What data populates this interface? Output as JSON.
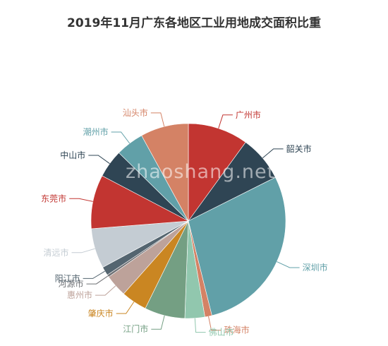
{
  "watermark": "zhaoshang.net",
  "colors": {
    "广州市": "#c23531",
    "韶关市": "#2f4554",
    "深圳市": "#61a0a8",
    "珠海市": "#d48265",
    "佛山市": "#91c7ae",
    "江门市": "#749f83",
    "肇庆市": "#ca8622",
    "惠州市": "#bda29a",
    "河源市": "#6e7074",
    "阳江市": "#546570",
    "清远市": "#c4ccd3",
    "东莞市": "#c23531",
    "中山市": "#2f4554",
    "潮州市": "#61a0a8",
    "汕头市": "#d48265"
  },
  "chart_data": {
    "type": "pie",
    "title": "2019年11月广东各地区工业用地成交面积比重",
    "categories": [
      "广州市",
      "韶关市",
      "深圳市",
      "珠海市",
      "佛山市",
      "江门市",
      "肇庆市",
      "惠州市",
      "河源市",
      "阳江市",
      "清远市",
      "东莞市",
      "中山市",
      "潮州市",
      "汕头市"
    ],
    "values": [
      10.3,
      7.8,
      29.3,
      1.2,
      3.4,
      6.9,
      4.4,
      3.8,
      0.4,
      1.5,
      6.8,
      9.2,
      4.8,
      4.8,
      8.2
    ],
    "legend": "none",
    "start_angle_deg": 90,
    "direction": "clockwise"
  }
}
